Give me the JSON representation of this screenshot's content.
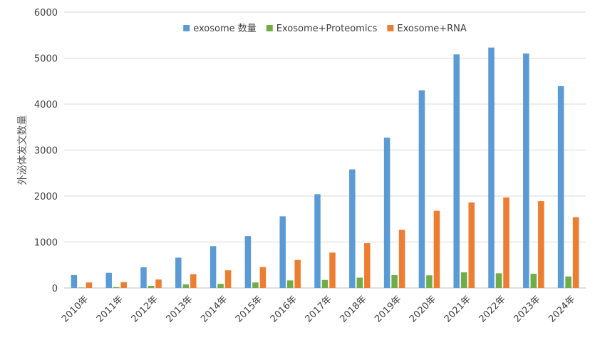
{
  "chart_data": {
    "type": "bar",
    "title": "",
    "xlabel": "",
    "ylabel": "外泌体发文数量",
    "ylim": [
      0,
      6000
    ],
    "yticks": [
      0,
      1000,
      2000,
      3000,
      4000,
      5000,
      6000
    ],
    "ytick_labels": [
      "0",
      "1000",
      "2000",
      "3000",
      "4000",
      "5000",
      "6000"
    ],
    "grid": true,
    "legend_position": "top",
    "categories": [
      "2010年",
      "2011年",
      "2012年",
      "2013年",
      "2014年",
      "2015年",
      "2016年",
      "2017年",
      "2018年",
      "2019年",
      "2020年",
      "2021年",
      "2022年",
      "2023年",
      "2024年"
    ],
    "series": [
      {
        "name": "exosome 数量",
        "color": "#5b9bd5",
        "values": [
          280,
          330,
          450,
          660,
          910,
          1130,
          1560,
          2040,
          2580,
          3270,
          4300,
          5080,
          5230,
          5100,
          4390
        ]
      },
      {
        "name": "Exosome+Proteomics",
        "color": "#70ad47",
        "values": [
          10,
          20,
          45,
          80,
          90,
          120,
          165,
          175,
          225,
          280,
          275,
          340,
          320,
          310,
          250
        ]
      },
      {
        "name": "Exosome+RNA",
        "color": "#ed7d31",
        "values": [
          120,
          125,
          185,
          300,
          385,
          455,
          610,
          770,
          975,
          1265,
          1680,
          1860,
          1970,
          1890,
          1540
        ]
      }
    ]
  }
}
